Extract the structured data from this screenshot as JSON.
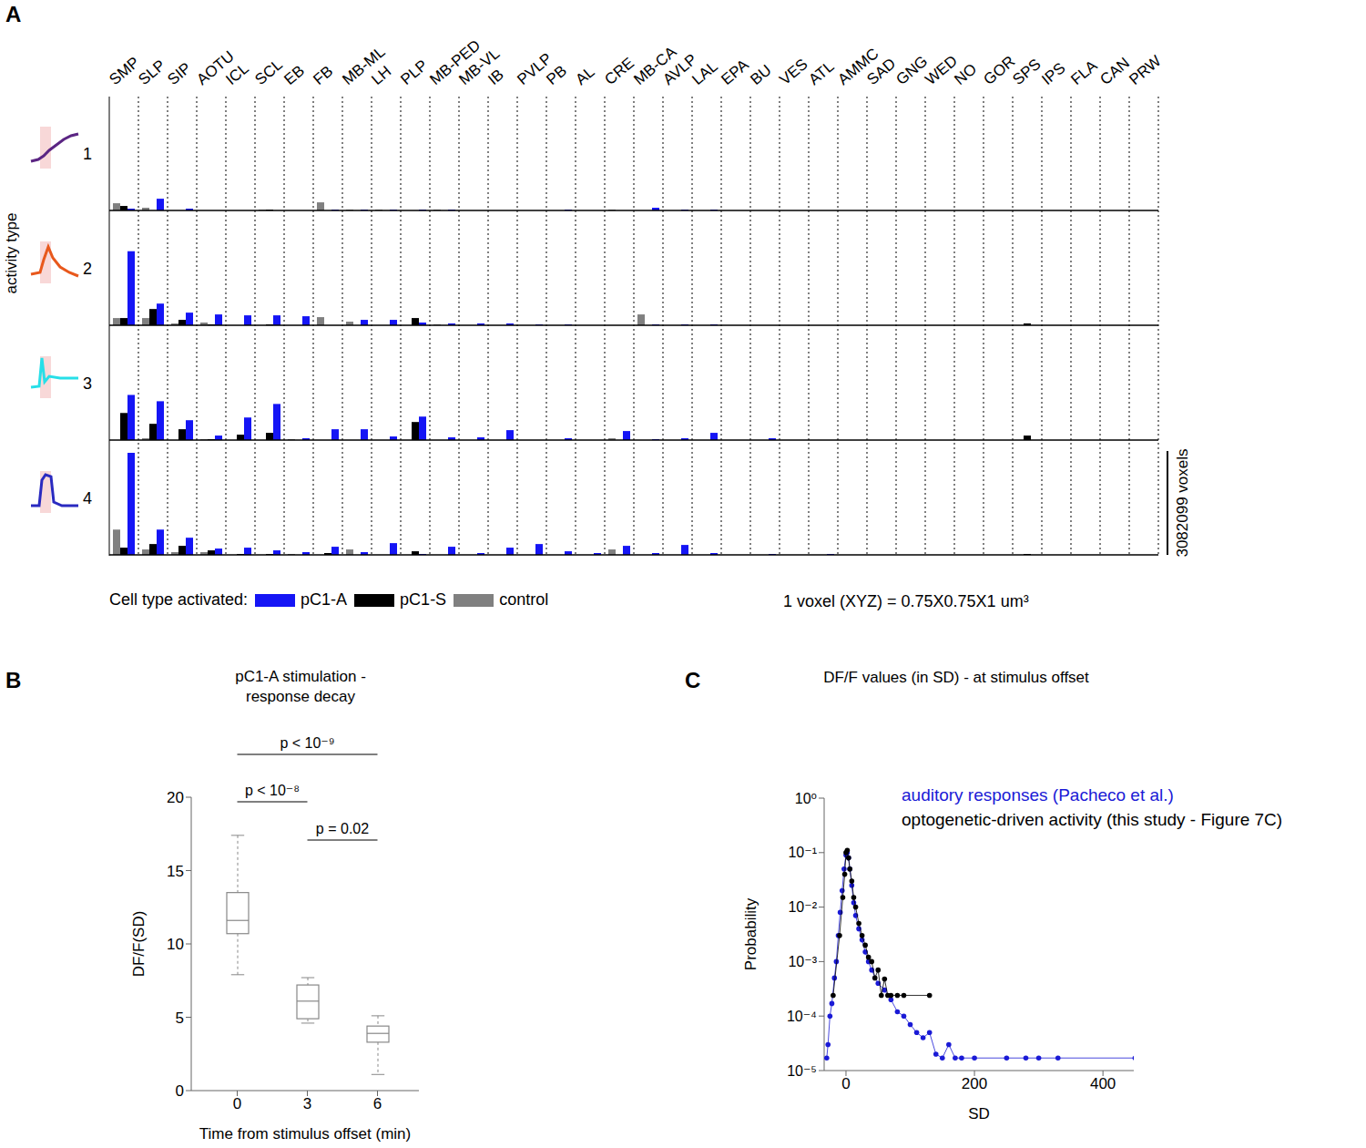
{
  "chart_data": [
    {
      "panel": "A",
      "type": "bar",
      "ylabel": "activity type",
      "tick_labels": "x",
      "categories": [
        "SMP",
        "SLP",
        "SIP",
        "AOTU",
        "ICL",
        "SCL",
        "EB",
        "FB",
        "MB-ML",
        "LH",
        "PLP",
        "MB-PED",
        "MB-VL",
        "IB",
        "PVLP",
        "PB",
        "AL",
        "CRE",
        "MB-CA",
        "AVLP",
        "LAL",
        "EPA",
        "BU",
        "VES",
        "ATL",
        "AMMC",
        "SAD",
        "GNG",
        "WED",
        "NO",
        "GOR",
        "SPS",
        "IPS",
        "FLA",
        "CAN",
        "PRW"
      ],
      "legend_title": "Cell type activated:",
      "series": [
        {
          "name": "pC1-A",
          "color": "#1515f5"
        },
        {
          "name": "pC1-S",
          "color": "#000000"
        },
        {
          "name": "control",
          "color": "#808080"
        }
      ],
      "ylim": [
        0,
        3380000
      ],
      "scale_bar": {
        "value": 3082099,
        "label": "3082099 voxels"
      },
      "annotation": "1 voxel (XYZ) = 0.75X0.75X1 um³",
      "rows": [
        {
          "label": "1",
          "color": "#5b2583",
          "values": [
            [
              53600,
              348400,
              53600,
              0,
              0,
              0,
              0,
              26800,
              26800,
              26800,
              26800,
              26800,
              0,
              0,
              0,
              26800,
              0,
              0,
              80400,
              26800,
              26800,
              0,
              0,
              0,
              0,
              0,
              0,
              0,
              0,
              0,
              0,
              0,
              0,
              0,
              0,
              0
            ],
            [
              134000,
              0,
              0,
              0,
              0,
              26800,
              0,
              0,
              0,
              0,
              0,
              0,
              0,
              0,
              0,
              0,
              0,
              0,
              0,
              0,
              0,
              0,
              0,
              0,
              0,
              0,
              0,
              0,
              0,
              0,
              0,
              0,
              0,
              0,
              0,
              0
            ],
            [
              214400,
              80400,
              0,
              0,
              0,
              26800,
              0,
              241200,
              26800,
              26800,
              0,
              26800,
              0,
              0,
              0,
              0,
              0,
              26800,
              0,
              0,
              0,
              0,
              0,
              0,
              0,
              0,
              0,
              0,
              0,
              0,
              0,
              0,
              0,
              0,
              0,
              0
            ]
          ]
        },
        {
          "label": "2",
          "color": "#e8581c",
          "values": [
            [
              2197600,
              643200,
              375200,
              321600,
              294800,
              294800,
              268000,
              0,
              160800,
              160800,
              80400,
              53600,
              53600,
              53600,
              26800,
              26800,
              0,
              0,
              26800,
              26800,
              26800,
              0,
              0,
              0,
              0,
              0,
              0,
              0,
              0,
              0,
              0,
              0,
              0,
              0,
              0,
              0
            ],
            [
              214400,
              482400,
              160800,
              26800,
              0,
              26800,
              0,
              0,
              0,
              0,
              214400,
              0,
              0,
              0,
              0,
              0,
              0,
              0,
              0,
              0,
              0,
              0,
              0,
              0,
              0,
              0,
              0,
              0,
              0,
              0,
              0,
              53600,
              0,
              0,
              0,
              0
            ],
            [
              214400,
              214400,
              53600,
              80400,
              0,
              0,
              0,
              241200,
              107200,
              0,
              0,
              26800,
              0,
              0,
              0,
              0,
              0,
              0,
              321600,
              0,
              0,
              0,
              0,
              0,
              0,
              0,
              0,
              0,
              0,
              0,
              0,
              0,
              0,
              0,
              0,
              0
            ]
          ]
        },
        {
          "label": "3",
          "color": "#27dfe8",
          "values": [
            [
              1340000,
              1152400,
              589600,
              134000,
              670000,
              1072000,
              53600,
              321600,
              321600,
              107200,
              696800,
              80400,
              80400,
              294800,
              0,
              53600,
              0,
              268000,
              26800,
              53600,
              214400,
              0,
              53600,
              0,
              0,
              0,
              0,
              0,
              0,
              0,
              0,
              0,
              0,
              0,
              0,
              0
            ],
            [
              804000,
              482400,
              321600,
              26800,
              160800,
              214400,
              0,
              0,
              0,
              0,
              536000,
              0,
              0,
              0,
              0,
              0,
              0,
              0,
              0,
              0,
              0,
              0,
              0,
              0,
              0,
              0,
              0,
              0,
              0,
              0,
              0,
              134000,
              0,
              0,
              0,
              0
            ],
            [
              0,
              53600,
              0,
              26800,
              0,
              0,
              26800,
              0,
              0,
              0,
              0,
              0,
              0,
              0,
              0,
              0,
              0,
              53600,
              0,
              0,
              0,
              0,
              0,
              0,
              0,
              0,
              0,
              0,
              0,
              0,
              0,
              0,
              0,
              0,
              0,
              0
            ]
          ]
        },
        {
          "label": "4",
          "color": "#2a2ac0",
          "values": [
            [
              3028400,
              750400,
              509200,
              187600,
              214400,
              134000,
              80400,
              241200,
              80400,
              348400,
              26800,
              241200,
              53600,
              214400,
              321600,
              107200,
              53600,
              268000,
              53600,
              294800,
              53600,
              0,
              26800,
              0,
              26800,
              0,
              0,
              0,
              0,
              0,
              0,
              0,
              0,
              0,
              0,
              0
            ],
            [
              214400,
              321600,
              268000,
              134000,
              26800,
              26800,
              0,
              53600,
              0,
              0,
              107200,
              0,
              0,
              0,
              0,
              0,
              0,
              0,
              0,
              0,
              0,
              0,
              0,
              0,
              0,
              0,
              0,
              0,
              0,
              0,
              0,
              26800,
              0,
              0,
              0,
              0
            ],
            [
              750400,
              160800,
              80400,
              80400,
              0,
              0,
              26800,
              0,
              160800,
              0,
              0,
              0,
              0,
              0,
              0,
              0,
              0,
              160800,
              0,
              0,
              0,
              0,
              0,
              0,
              0,
              0,
              0,
              0,
              0,
              0,
              0,
              0,
              0,
              0,
              0,
              0
            ]
          ]
        }
      ]
    },
    {
      "panel": "B",
      "type": "box",
      "title": "pC1-A stimulation -\nresponse decay",
      "xlabel": "Time from stimulus offset (min)",
      "ylabel": "DF/F(SD)",
      "color": "#888888",
      "categories": [
        "0",
        "3",
        "6"
      ],
      "boxes": [
        {
          "min": 7.9,
          "q1": 10.7,
          "median": 11.6,
          "q3": 13.5,
          "max": 17.4
        },
        {
          "min": 4.6,
          "q1": 4.9,
          "median": 6.1,
          "q3": 7.2,
          "max": 7.7
        },
        {
          "min": 1.1,
          "q1": 3.3,
          "median": 3.9,
          "q3": 4.4,
          "max": 5.1
        }
      ],
      "ylim": [
        0,
        20
      ],
      "yticks": [
        0,
        5,
        10,
        15,
        20
      ],
      "comparisons": [
        {
          "from": "0",
          "to": "6",
          "label": "p < 10⁻⁹"
        },
        {
          "from": "0",
          "to": "3",
          "label": "p < 10⁻⁸"
        },
        {
          "from": "3",
          "to": "6",
          "label": "p = 0.02"
        }
      ]
    },
    {
      "panel": "C",
      "type": "scatter",
      "title": "DF/F values (in SD) - at stimulus offset",
      "xlabel": "SD",
      "ylabel": "Probability",
      "log": "y",
      "xlim": [
        -34,
        448
      ],
      "xticks": [
        0,
        200,
        400
      ],
      "ylim": [
        1e-05,
        1
      ],
      "yticks": [
        {
          "value": 1,
          "label": "10⁰"
        },
        {
          "value": 0.1,
          "label": "10⁻¹"
        },
        {
          "value": 0.01,
          "label": "10⁻²"
        },
        {
          "value": 0.001,
          "label": "10⁻³"
        },
        {
          "value": 0.0001,
          "label": "10⁻⁴"
        },
        {
          "value": 1e-05,
          "label": "10⁻⁵"
        }
      ],
      "series": [
        {
          "name": "auditory responses (Pacheco et al.)",
          "color": "#1a1ad6",
          "marker": "circle",
          "line_style": "solid",
          "x": [
            -30,
            -28,
            -25,
            -22,
            -18,
            -15,
            -12,
            -9,
            -6,
            -3,
            0,
            2,
            4,
            6,
            9,
            12,
            15,
            20,
            25,
            30,
            35,
            40,
            50,
            60,
            70,
            80,
            90,
            100,
            110,
            120,
            130,
            140,
            150,
            160,
            170,
            180,
            200,
            250,
            280,
            300,
            330,
            450
          ],
          "values": [
            1.7e-05,
            3e-05,
            0.0001,
            0.00017,
            0.0005,
            0.001,
            0.003,
            0.008,
            0.02,
            0.05,
            0.09,
            0.1,
            0.08,
            0.05,
            0.025,
            0.012,
            0.007,
            0.004,
            0.0025,
            0.0015,
            0.001,
            0.0007,
            0.0004,
            0.0003,
            0.0002,
            0.00012,
            0.0001,
            7e-05,
            5e-05,
            4e-05,
            5e-05,
            2e-05,
            1.7e-05,
            3e-05,
            1.7e-05,
            1.7e-05,
            1.7e-05,
            1.7e-05,
            1.7e-05,
            1.7e-05,
            1.7e-05,
            1.7e-05
          ]
        },
        {
          "name": "optogenetic-driven activity (this study - Figure 7C)",
          "color": "#000000",
          "marker": "circle",
          "line_style": "solid",
          "x": [
            -20,
            -10,
            -5,
            -2,
            0,
            2,
            4,
            6,
            9,
            12,
            15,
            20,
            25,
            30,
            35,
            40,
            45,
            50,
            55,
            60,
            65,
            70,
            80,
            90,
            130
          ],
          "values": [
            0.00024,
            0.003,
            0.015,
            0.04,
            0.1,
            0.11,
            0.08,
            0.05,
            0.03,
            0.015,
            0.01,
            0.005,
            0.003,
            0.002,
            0.0012,
            0.001,
            0.0005,
            0.0007,
            0.00024,
            0.00048,
            0.00024,
            0.00024,
            0.00024,
            0.00024,
            0.00024
          ]
        }
      ]
    }
  ]
}
